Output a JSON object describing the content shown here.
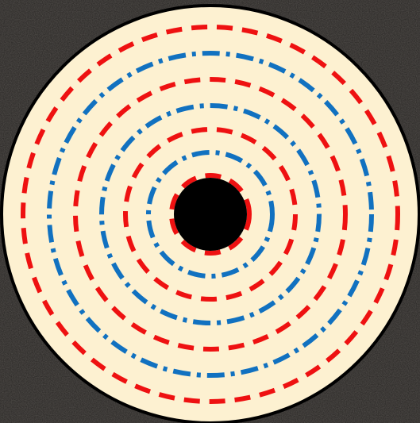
{
  "scene": {
    "background_color": "#262422",
    "texture_tint": "#3a3430"
  },
  "disc": {
    "fill_color": "#fdf1d1",
    "outline_color": "#000000",
    "hole_color": "#000000"
  },
  "rings": [
    {
      "style": "dashed",
      "color": "#ee1111"
    },
    {
      "style": "dash-dot",
      "color": "#1171c0"
    },
    {
      "style": "dashed",
      "color": "#ee1111"
    },
    {
      "style": "dash-dot",
      "color": "#1171c0"
    },
    {
      "style": "dashed",
      "color": "#ee1111"
    },
    {
      "style": "dash-dot",
      "color": "#1171c0"
    },
    {
      "style": "dashed",
      "color": "#ee1111"
    }
  ]
}
